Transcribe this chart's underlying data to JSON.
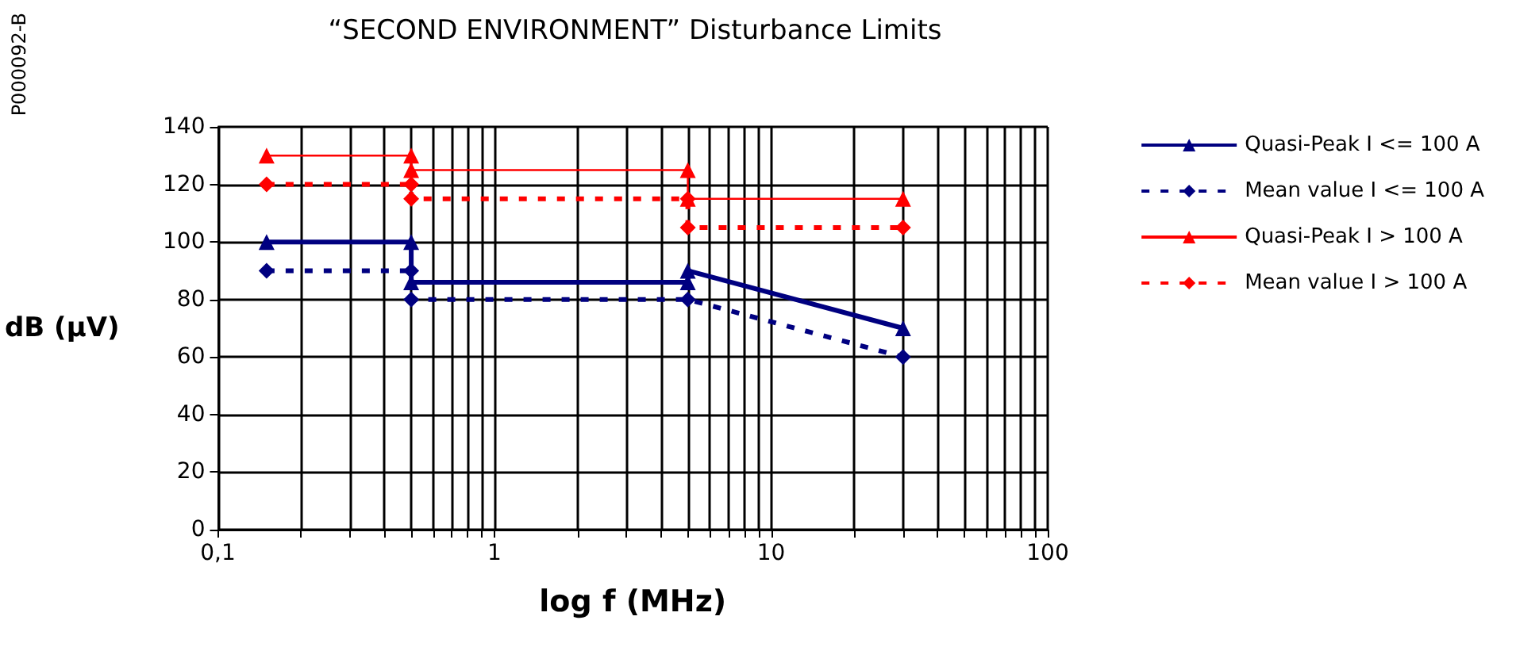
{
  "chart_data": {
    "type": "line",
    "title": "“SECOND ENVIRONMENT” Disturbance Limits",
    "xlabel": "log f (MHz)",
    "ylabel": "dB (µV)",
    "annotations": [
      "P000092-B"
    ],
    "log": "x",
    "grid": true,
    "legend": "right",
    "xlim": [
      0.1,
      100
    ],
    "ylim": [
      0,
      140
    ],
    "xticks": [
      {
        "value": 0.1,
        "label": "0,1"
      },
      {
        "value": 0.2,
        "label": null
      },
      {
        "value": 0.3,
        "label": null
      },
      {
        "value": 0.4,
        "label": null
      },
      {
        "value": 0.5,
        "label": null
      },
      {
        "value": 0.6,
        "label": null
      },
      {
        "value": 0.7,
        "label": null
      },
      {
        "value": 0.8,
        "label": null
      },
      {
        "value": 0.9,
        "label": null
      },
      1,
      {
        "value": 2,
        "label": null
      },
      {
        "value": 3,
        "label": null
      },
      {
        "value": 4,
        "label": null
      },
      {
        "value": 5,
        "label": null
      },
      {
        "value": 6,
        "label": null
      },
      {
        "value": 7,
        "label": null
      },
      {
        "value": 8,
        "label": null
      },
      {
        "value": 9,
        "label": null
      },
      10,
      {
        "value": 20,
        "label": null
      },
      {
        "value": 30,
        "label": null
      },
      {
        "value": 40,
        "label": null
      },
      {
        "value": 50,
        "label": null
      },
      {
        "value": 60,
        "label": null
      },
      {
        "value": 70,
        "label": null
      },
      {
        "value": 80,
        "label": null
      },
      {
        "value": 90,
        "label": null
      },
      100
    ],
    "yticks": [
      0,
      20,
      40,
      60,
      80,
      100,
      120,
      140
    ],
    "series": [
      {
        "name": "Quasi-Peak I <= 100 A",
        "color": "#000080",
        "marker": "triangle",
        "line_style": "solid",
        "x": [
          0.15,
          0.5,
          0.5,
          5,
          5,
          30
        ],
        "values": [
          100,
          100,
          86,
          86,
          90,
          70
        ]
      },
      {
        "name": "Mean value I <= 100 A",
        "color": "#000080",
        "marker": "diamond",
        "line_style": "dashed",
        "x": [
          0.15,
          0.5,
          0.5,
          5,
          30
        ],
        "values": [
          90,
          90,
          80,
          80,
          60
        ]
      },
      {
        "name": "Quasi-Peak I > 100 A",
        "color": "#ff0000",
        "marker": "triangle",
        "line_style": "solid",
        "x": [
          0.15,
          0.5,
          0.5,
          5,
          5,
          30
        ],
        "values": [
          130,
          130,
          125,
          125,
          115,
          115
        ]
      },
      {
        "name": "Mean value I > 100 A",
        "color": "#ff0000",
        "marker": "diamond",
        "line_style": "dashed",
        "x": [
          0.15,
          0.5,
          0.5,
          5,
          5,
          30
        ],
        "values": [
          120,
          120,
          115,
          115,
          105,
          105
        ]
      }
    ]
  }
}
